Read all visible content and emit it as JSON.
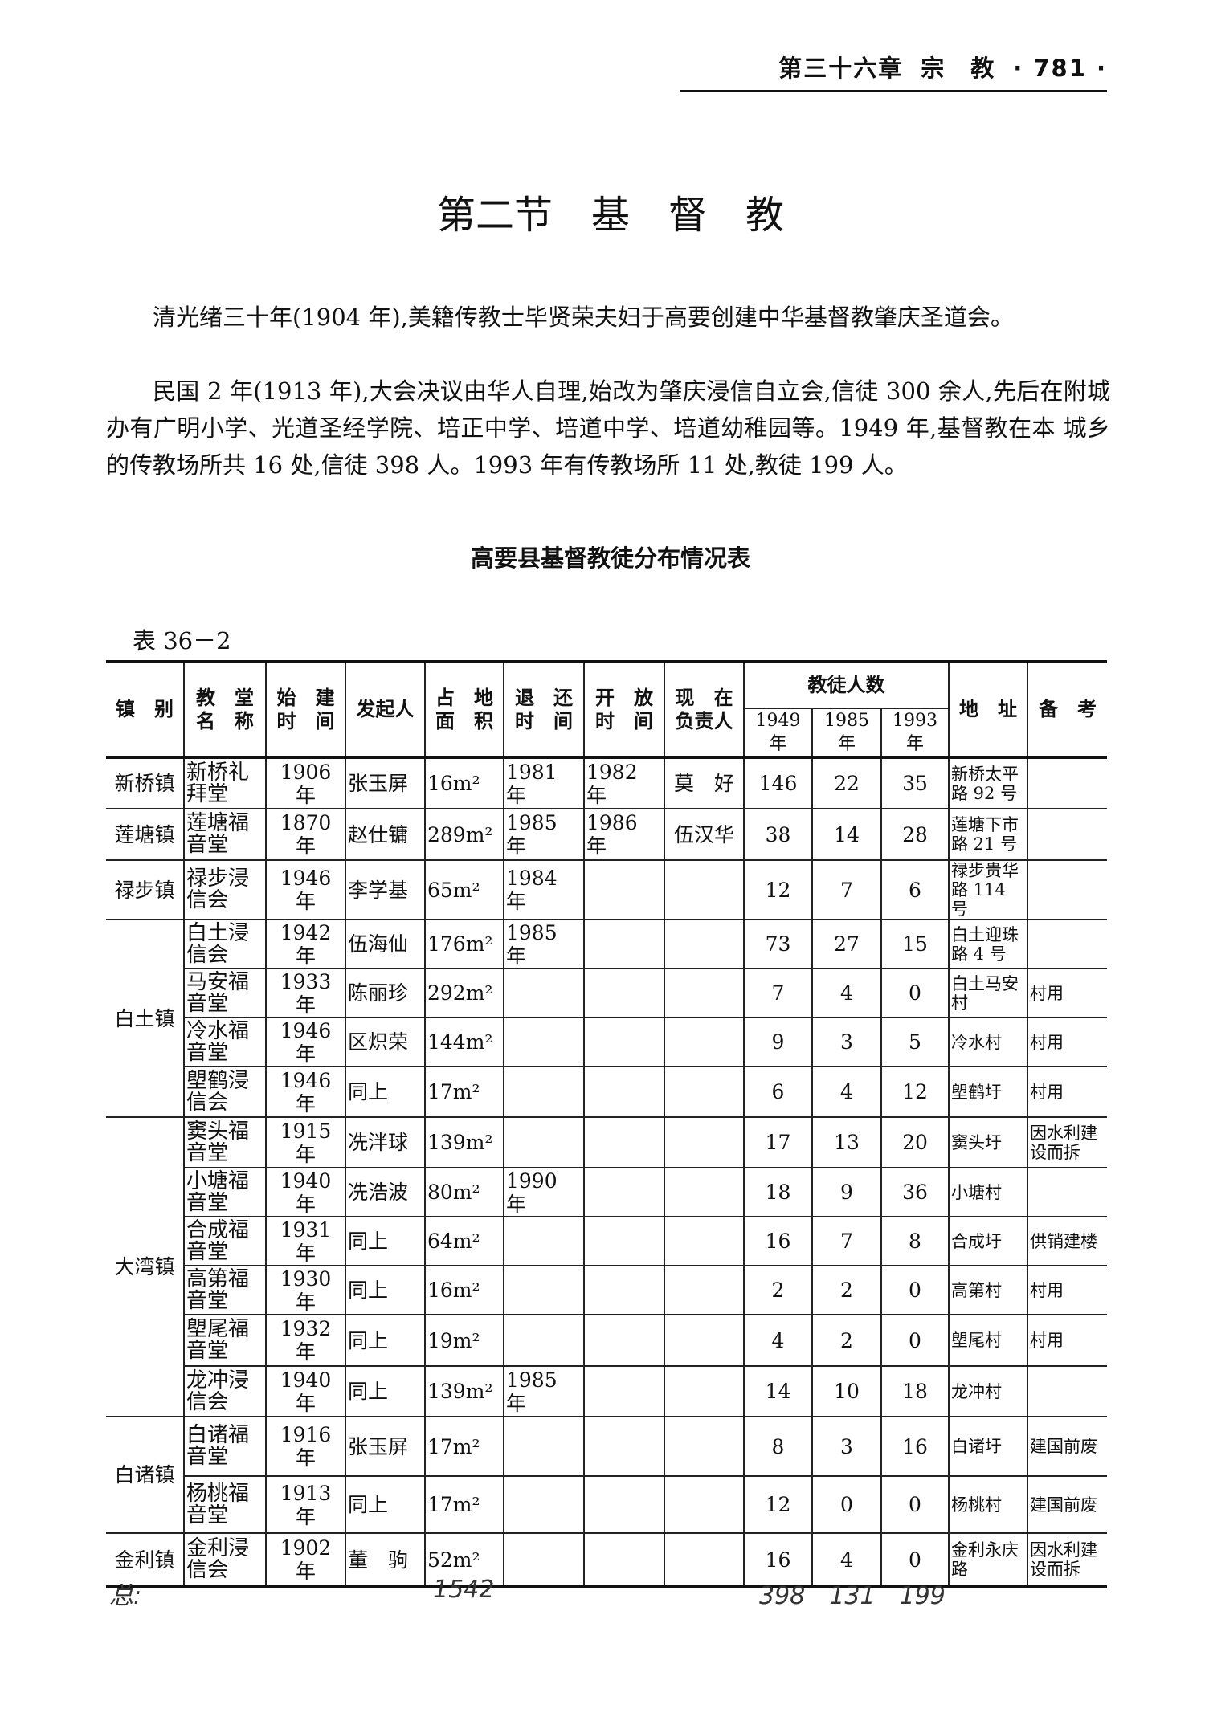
{
  "header": {
    "chapter": "第三十六章",
    "section": "宗　教",
    "page": "· 781 ·"
  },
  "title": "第二节　基　督　教",
  "paragraphs": [
    "清光绪三十年(1904 年),美籍传教士毕贤荣夫妇于高要创建中华基督教肇庆圣道会。",
    "民国 2 年(1913 年),大会决议由华人自理,始改为肇庆浸信自立会,信徒 300 余人,先后在附城办有广明小学、光道圣经学院、培正中学、培道中学、培道幼稚园等。1949 年,基督教在本 城乡的传教场所共 16 处,信徒 398 人。1993 年有传教场所 11 处,教徒 199 人。"
  ],
  "table": {
    "title": "高要县基督教徒分布情况表",
    "number": "表 36－2",
    "headers": {
      "town": "镇　别",
      "church": "教　堂\n名　称",
      "built": "始　建\n时　间",
      "founder": "发起人",
      "area": "占　地\n面　积",
      "returned": "退　还\n时　间",
      "opened": "开　放\n时　间",
      "leader": "现　在\n负责人",
      "members": "教徒人数",
      "y1949": "1949 年",
      "y1985": "1985 年",
      "y1993": "1993 年",
      "address": "地　址",
      "remark": "备　考"
    },
    "groups": [
      {
        "town": "新桥镇",
        "rows": [
          {
            "church": "新桥礼拜堂",
            "built": "1906 年",
            "founder": "张玉屏",
            "area": "16m²",
            "returned": "1981 年",
            "opened": "1982 年",
            "leader": "莫　好",
            "m1949": "146",
            "m1985": "22",
            "m1993": "35",
            "address": "新桥太平路 92 号",
            "remark": ""
          }
        ]
      },
      {
        "town": "莲塘镇",
        "rows": [
          {
            "church": "莲塘福音堂",
            "built": "1870 年",
            "founder": "赵仕镛",
            "area": "289m²",
            "returned": "1985 年",
            "opened": "1986 年",
            "leader": "伍汉华",
            "m1949": "38",
            "m1985": "14",
            "m1993": "28",
            "address": "莲塘下市路 21 号",
            "remark": ""
          }
        ]
      },
      {
        "town": "禄步镇",
        "rows": [
          {
            "church": "禄步浸信会",
            "built": "1946 年",
            "founder": "李学基",
            "area": "65m²",
            "returned": "1984 年",
            "opened": "",
            "leader": "",
            "m1949": "12",
            "m1985": "7",
            "m1993": "6",
            "address": "禄步贵华路 114 号",
            "remark": ""
          }
        ]
      },
      {
        "town": "白土镇",
        "rows": [
          {
            "church": "白土浸信会",
            "built": "1942 年",
            "founder": "伍海仙",
            "area": "176m²",
            "returned": "1985 年",
            "opened": "",
            "leader": "",
            "m1949": "73",
            "m1985": "27",
            "m1993": "15",
            "address": "白土迎珠路 4 号",
            "remark": ""
          },
          {
            "church": "马安福音堂",
            "built": "1933 年",
            "founder": "陈丽珍",
            "area": "292m²",
            "returned": "",
            "opened": "",
            "leader": "",
            "m1949": "7",
            "m1985": "4",
            "m1993": "0",
            "address": "白土马安村",
            "remark": "村用"
          },
          {
            "church": "冷水福音堂",
            "built": "1946 年",
            "founder": "区炽荣",
            "area": "144m²",
            "returned": "",
            "opened": "",
            "leader": "",
            "m1949": "9",
            "m1985": "3",
            "m1993": "5",
            "address": "冷水村",
            "remark": "村用"
          },
          {
            "church": "塱鹤浸信会",
            "built": "1946 年",
            "founder": "同上",
            "area": "17m²",
            "returned": "",
            "opened": "",
            "leader": "",
            "m1949": "6",
            "m1985": "4",
            "m1993": "12",
            "address": "塱鹤圩",
            "remark": "村用"
          }
        ]
      },
      {
        "town": "大湾镇",
        "rows": [
          {
            "church": "窦头福音堂",
            "built": "1915 年",
            "founder": "冼泮球",
            "area": "139m²",
            "returned": "",
            "opened": "",
            "leader": "",
            "m1949": "17",
            "m1985": "13",
            "m1993": "20",
            "address": "窦头圩",
            "remark": "因水利建设而拆"
          },
          {
            "church": "小塘福音堂",
            "built": "1940 年",
            "founder": "冼浩波",
            "area": "80m²",
            "returned": "1990 年",
            "opened": "",
            "leader": "",
            "m1949": "18",
            "m1985": "9",
            "m1993": "36",
            "address": "小塘村",
            "remark": ""
          },
          {
            "church": "合成福音堂",
            "built": "1931 年",
            "founder": "同上",
            "area": "64m²",
            "returned": "",
            "opened": "",
            "leader": "",
            "m1949": "16",
            "m1985": "7",
            "m1993": "8",
            "address": "合成圩",
            "remark": "供销建楼"
          },
          {
            "church": "高第福音堂",
            "built": "1930 年",
            "founder": "同上",
            "area": "16m²",
            "returned": "",
            "opened": "",
            "leader": "",
            "m1949": "2",
            "m1985": "2",
            "m1993": "0",
            "address": "高第村",
            "remark": "村用"
          },
          {
            "church": "塱尾福音堂",
            "built": "1932 年",
            "founder": "同上",
            "area": "19m²",
            "returned": "",
            "opened": "",
            "leader": "",
            "m1949": "4",
            "m1985": "2",
            "m1993": "0",
            "address": "塱尾村",
            "remark": "村用"
          },
          {
            "church": "龙冲浸信会",
            "built": "1940 年",
            "founder": "同上",
            "area": "139m²",
            "returned": "1985 年",
            "opened": "",
            "leader": "",
            "m1949": "14",
            "m1985": "10",
            "m1993": "18",
            "address": "龙冲村",
            "remark": ""
          }
        ]
      },
      {
        "town": "白诸镇",
        "rows": [
          {
            "church": "白诸福音堂",
            "built": "1916 年",
            "founder": "张玉屏",
            "area": "17m²",
            "returned": "",
            "opened": "",
            "leader": "",
            "m1949": "8",
            "m1985": "3",
            "m1993": "16",
            "address": "白诸圩",
            "remark": "建国前废"
          },
          {
            "church": "杨桃福音堂",
            "built": "1913 年",
            "founder": "同上",
            "area": "17m²",
            "returned": "",
            "opened": "",
            "leader": "",
            "m1949": "12",
            "m1985": "0",
            "m1993": "0",
            "address": "杨桃村",
            "remark": "建国前废"
          }
        ]
      },
      {
        "town": "金利镇",
        "rows": [
          {
            "church": "金利浸信会",
            "built": "1902 年",
            "founder": "董　驹",
            "area": "52m²",
            "returned": "",
            "opened": "",
            "leader": "",
            "m1949": "16",
            "m1985": "4",
            "m1993": "0",
            "address": "金利永庆路",
            "remark": "因水利建设而拆"
          }
        ]
      }
    ]
  },
  "handwritten": {
    "total_label": "总:",
    "area_total": "1542",
    "members_totals": "398　131　199"
  }
}
